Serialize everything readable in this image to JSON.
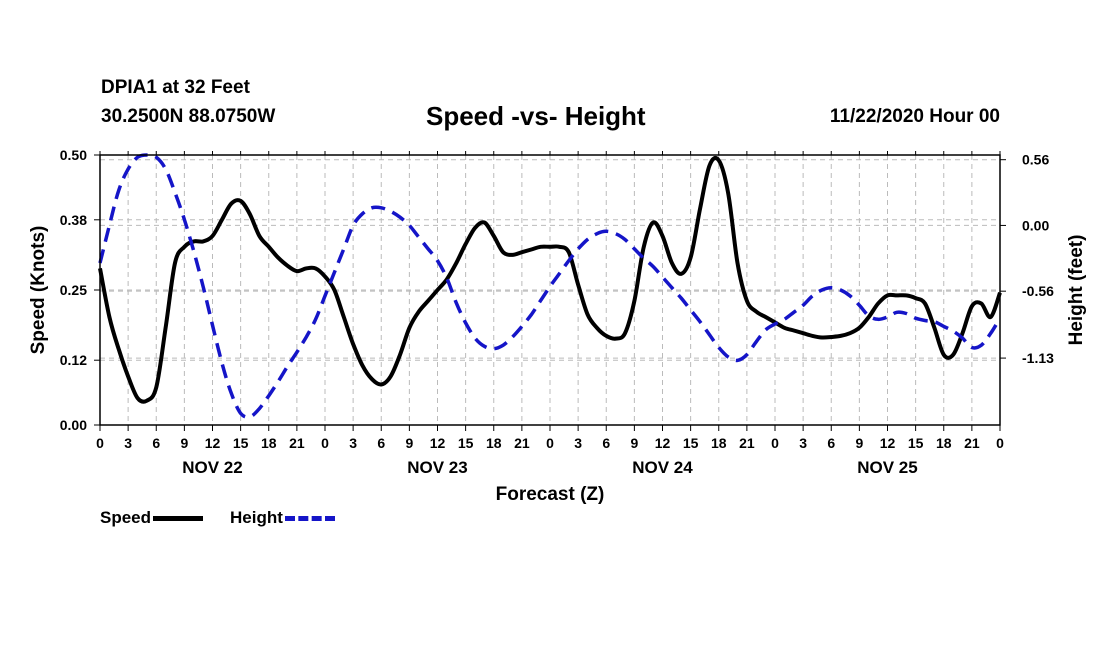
{
  "header": {
    "station": "DPIA1 at 32 Feet",
    "coords": "30.2500N 88.0750W",
    "title": "Speed -vs- Height",
    "issued": "11/22/2020 Hour 00"
  },
  "legend": {
    "speed": "Speed",
    "height": "Height"
  },
  "colors": {
    "speed": "#000000",
    "height": "#1515c8",
    "grid": "#bbbbbb"
  },
  "chart_data": {
    "type": "line",
    "title": "Speed -vs- Height",
    "xlabel": "Forecast (Z)",
    "ylabel": "Speed (Knots)",
    "y2label": "Height (feet)",
    "xlim": [
      0,
      96
    ],
    "ylim": [
      0,
      0.5
    ],
    "y2lim": [
      -1.7,
      0.6
    ],
    "x_ticks": [
      0,
      3,
      6,
      9,
      12,
      15,
      18,
      21,
      24,
      27,
      30,
      33,
      36,
      39,
      42,
      45,
      48,
      51,
      54,
      57,
      60,
      63,
      66,
      69,
      72,
      75,
      78,
      81,
      84,
      87,
      90,
      93,
      96
    ],
    "x_tick_labels": [
      "0",
      "3",
      "6",
      "9",
      "12",
      "15",
      "18",
      "21",
      "0",
      "3",
      "6",
      "9",
      "12",
      "15",
      "18",
      "21",
      "0",
      "3",
      "6",
      "9",
      "12",
      "15",
      "18",
      "21",
      "0",
      "3",
      "6",
      "9",
      "12",
      "15",
      "18",
      "21",
      "0"
    ],
    "y_ticks": [
      0.0,
      0.12,
      0.25,
      0.38,
      0.5
    ],
    "y_tick_labels": [
      "0.00",
      "0.12",
      "0.25",
      "0.38",
      "0.50"
    ],
    "y2_ticks": [
      0.56,
      0.0,
      -0.56,
      -1.13
    ],
    "y2_tick_labels": [
      "0.56",
      "0.00",
      "-0.56",
      "-1.13"
    ],
    "day_labels": [
      {
        "x": 12,
        "label": "NOV 22"
      },
      {
        "x": 36,
        "label": "NOV 23"
      },
      {
        "x": 60,
        "label": "NOV 24"
      },
      {
        "x": 84,
        "label": "NOV 25"
      }
    ],
    "series": [
      {
        "name": "Speed",
        "axis": "left",
        "points": [
          [
            0,
            0.29
          ],
          [
            1,
            0.2
          ],
          [
            2,
            0.14
          ],
          [
            3,
            0.09
          ],
          [
            4,
            0.05
          ],
          [
            5,
            0.045
          ],
          [
            6,
            0.07
          ],
          [
            7,
            0.18
          ],
          [
            8,
            0.3
          ],
          [
            9,
            0.33
          ],
          [
            10,
            0.34
          ],
          [
            11,
            0.34
          ],
          [
            12,
            0.35
          ],
          [
            13,
            0.38
          ],
          [
            14,
            0.41
          ],
          [
            15,
            0.415
          ],
          [
            16,
            0.39
          ],
          [
            17,
            0.35
          ],
          [
            18,
            0.33
          ],
          [
            19,
            0.31
          ],
          [
            20,
            0.295
          ],
          [
            21,
            0.285
          ],
          [
            22,
            0.29
          ],
          [
            23,
            0.29
          ],
          [
            24,
            0.275
          ],
          [
            25,
            0.25
          ],
          [
            26,
            0.2
          ],
          [
            27,
            0.15
          ],
          [
            28,
            0.11
          ],
          [
            29,
            0.085
          ],
          [
            30,
            0.075
          ],
          [
            31,
            0.09
          ],
          [
            32,
            0.13
          ],
          [
            33,
            0.18
          ],
          [
            34,
            0.21
          ],
          [
            35,
            0.23
          ],
          [
            36,
            0.25
          ],
          [
            37,
            0.27
          ],
          [
            38,
            0.3
          ],
          [
            39,
            0.335
          ],
          [
            40,
            0.365
          ],
          [
            41,
            0.375
          ],
          [
            42,
            0.35
          ],
          [
            43,
            0.32
          ],
          [
            44,
            0.315
          ],
          [
            45,
            0.32
          ],
          [
            46,
            0.325
          ],
          [
            47,
            0.33
          ],
          [
            48,
            0.33
          ],
          [
            49,
            0.33
          ],
          [
            50,
            0.32
          ],
          [
            51,
            0.26
          ],
          [
            52,
            0.205
          ],
          [
            53,
            0.18
          ],
          [
            54,
            0.165
          ],
          [
            55,
            0.16
          ],
          [
            56,
            0.17
          ],
          [
            57,
            0.23
          ],
          [
            58,
            0.33
          ],
          [
            59,
            0.375
          ],
          [
            60,
            0.35
          ],
          [
            61,
            0.3
          ],
          [
            62,
            0.28
          ],
          [
            63,
            0.31
          ],
          [
            64,
            0.4
          ],
          [
            65,
            0.48
          ],
          [
            66,
            0.49
          ],
          [
            67,
            0.43
          ],
          [
            68,
            0.3
          ],
          [
            69,
            0.23
          ],
          [
            70,
            0.21
          ],
          [
            71,
            0.2
          ],
          [
            72,
            0.19
          ],
          [
            73,
            0.18
          ],
          [
            74,
            0.175
          ],
          [
            75,
            0.17
          ],
          [
            76,
            0.165
          ],
          [
            77,
            0.162
          ],
          [
            78,
            0.163
          ],
          [
            79,
            0.165
          ],
          [
            80,
            0.17
          ],
          [
            81,
            0.18
          ],
          [
            82,
            0.2
          ],
          [
            83,
            0.225
          ],
          [
            84,
            0.24
          ],
          [
            85,
            0.24
          ],
          [
            86,
            0.24
          ],
          [
            87,
            0.235
          ],
          [
            88,
            0.225
          ],
          [
            89,
            0.18
          ],
          [
            90,
            0.13
          ],
          [
            91,
            0.13
          ],
          [
            92,
            0.17
          ],
          [
            93,
            0.22
          ],
          [
            94,
            0.225
          ],
          [
            95,
            0.2
          ],
          [
            96,
            0.245
          ]
        ]
      },
      {
        "name": "Height",
        "axis": "right",
        "points": [
          [
            0,
            -0.32
          ],
          [
            1,
            0.0
          ],
          [
            2,
            0.3
          ],
          [
            3,
            0.48
          ],
          [
            4,
            0.58
          ],
          [
            5,
            0.6
          ],
          [
            6,
            0.58
          ],
          [
            7,
            0.48
          ],
          [
            8,
            0.28
          ],
          [
            9,
            0.05
          ],
          [
            10,
            -0.22
          ],
          [
            11,
            -0.52
          ],
          [
            12,
            -0.85
          ],
          [
            13,
            -1.17
          ],
          [
            14,
            -1.43
          ],
          [
            15,
            -1.6
          ],
          [
            16,
            -1.63
          ],
          [
            17,
            -1.56
          ],
          [
            18,
            -1.45
          ],
          [
            19,
            -1.33
          ],
          [
            20,
            -1.2
          ],
          [
            21,
            -1.08
          ],
          [
            22,
            -0.95
          ],
          [
            23,
            -0.8
          ],
          [
            24,
            -0.6
          ],
          [
            25,
            -0.4
          ],
          [
            26,
            -0.2
          ],
          [
            27,
            0.0
          ],
          [
            28,
            0.1
          ],
          [
            29,
            0.15
          ],
          [
            30,
            0.15
          ],
          [
            31,
            0.12
          ],
          [
            32,
            0.07
          ],
          [
            33,
            0.0
          ],
          [
            34,
            -0.1
          ],
          [
            35,
            -0.2
          ],
          [
            36,
            -0.3
          ],
          [
            37,
            -0.45
          ],
          [
            38,
            -0.66
          ],
          [
            39,
            -0.83
          ],
          [
            40,
            -0.96
          ],
          [
            41,
            -1.03
          ],
          [
            42,
            -1.05
          ],
          [
            43,
            -1.02
          ],
          [
            44,
            -0.95
          ],
          [
            45,
            -0.86
          ],
          [
            46,
            -0.76
          ],
          [
            47,
            -0.64
          ],
          [
            48,
            -0.52
          ],
          [
            49,
            -0.41
          ],
          [
            50,
            -0.3
          ],
          [
            51,
            -0.2
          ],
          [
            52,
            -0.12
          ],
          [
            53,
            -0.07
          ],
          [
            54,
            -0.05
          ],
          [
            55,
            -0.07
          ],
          [
            56,
            -0.12
          ],
          [
            57,
            -0.2
          ],
          [
            58,
            -0.28
          ],
          [
            59,
            -0.35
          ],
          [
            60,
            -0.44
          ],
          [
            61,
            -0.53
          ],
          [
            62,
            -0.62
          ],
          [
            63,
            -0.72
          ],
          [
            64,
            -0.82
          ],
          [
            65,
            -0.93
          ],
          [
            66,
            -1.04
          ],
          [
            67,
            -1.12
          ],
          [
            68,
            -1.15
          ],
          [
            69,
            -1.1
          ],
          [
            70,
            -0.99
          ],
          [
            71,
            -0.89
          ],
          [
            72,
            -0.84
          ],
          [
            73,
            -0.8
          ],
          [
            74,
            -0.74
          ],
          [
            75,
            -0.68
          ],
          [
            76,
            -0.6
          ],
          [
            77,
            -0.55
          ],
          [
            78,
            -0.53
          ],
          [
            79,
            -0.55
          ],
          [
            80,
            -0.6
          ],
          [
            81,
            -0.68
          ],
          [
            82,
            -0.77
          ],
          [
            83,
            -0.8
          ],
          [
            84,
            -0.78
          ],
          [
            85,
            -0.74
          ],
          [
            86,
            -0.75
          ],
          [
            87,
            -0.79
          ],
          [
            88,
            -0.81
          ],
          [
            89,
            -0.82
          ],
          [
            90,
            -0.86
          ],
          [
            91,
            -0.9
          ],
          [
            92,
            -0.96
          ],
          [
            93,
            -1.04
          ],
          [
            94,
            -1.02
          ],
          [
            95,
            -0.92
          ],
          [
            96,
            -0.79
          ]
        ]
      }
    ]
  }
}
